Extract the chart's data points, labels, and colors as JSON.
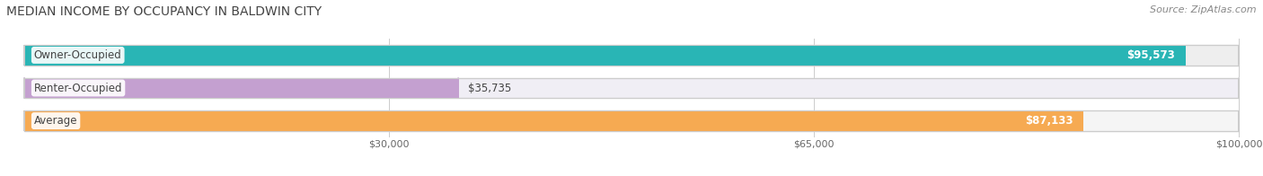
{
  "title": "MEDIAN INCOME BY OCCUPANCY IN BALDWIN CITY",
  "source": "Source: ZipAtlas.com",
  "categories": [
    "Owner-Occupied",
    "Renter-Occupied",
    "Average"
  ],
  "values": [
    95573,
    35735,
    87133
  ],
  "bar_colors": [
    "#29b5b5",
    "#c4a0d0",
    "#f6aa52"
  ],
  "bar_bg_colors": [
    "#eeeeee",
    "#f0eef5",
    "#f5f5f5"
  ],
  "labels": [
    "$95,573",
    "$35,735",
    "$87,133"
  ],
  "label_inside": [
    true,
    false,
    true
  ],
  "xmax": 100000,
  "xticks": [
    30000,
    65000,
    100000
  ],
  "xtick_labels": [
    "$30,000",
    "$65,000",
    "$100,000"
  ],
  "figsize": [
    14.06,
    1.96
  ],
  "dpi": 100,
  "title_fontsize": 10,
  "source_fontsize": 8,
  "bar_height": 0.62,
  "bar_label_fontsize": 8.5,
  "cat_label_fontsize": 8.5,
  "tick_fontsize": 8,
  "bar_gap": 0.18
}
